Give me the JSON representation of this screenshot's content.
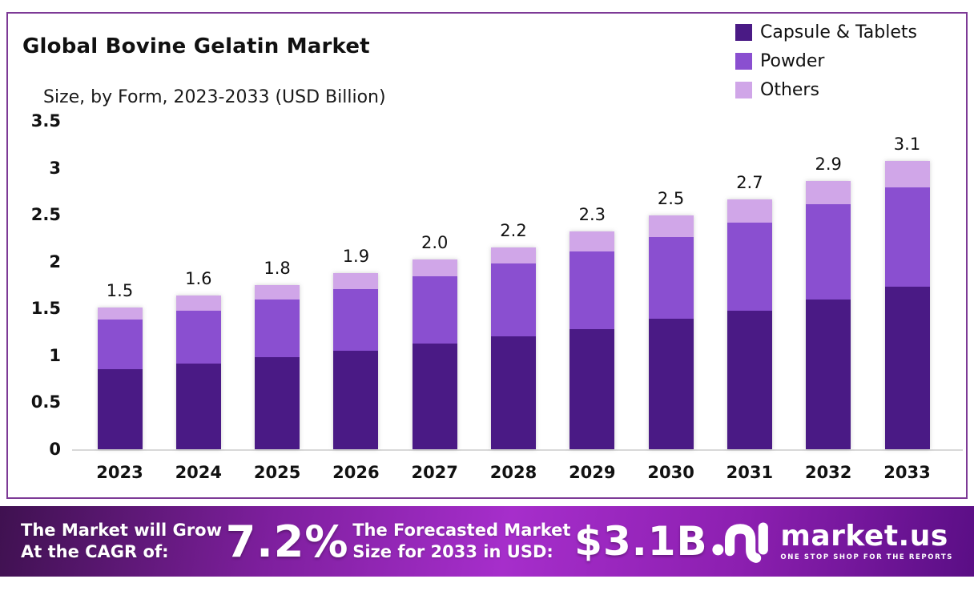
{
  "title": "Global Bovine Gelatin Market",
  "subtitle": "Size, by Form, 2023-2033 (USD Billion)",
  "colors": {
    "capsule": "#4a1a85",
    "powder": "#8a4fd0",
    "others": "#d0a6e8",
    "card_border": "#7d3a96",
    "axis_line": "#d8d8d8"
  },
  "legend": [
    {
      "label": "Capsule & Tablets",
      "color": "#4a1a85"
    },
    {
      "label": "Powder",
      "color": "#8a4fd0"
    },
    {
      "label": "Others",
      "color": "#d0a6e8"
    }
  ],
  "chart_data": {
    "type": "bar",
    "stacked": true,
    "title": "Global Bovine Gelatin Market Size, by Form, 2023-2033 (USD Billion)",
    "categories": [
      "2023",
      "2024",
      "2025",
      "2026",
      "2027",
      "2028",
      "2029",
      "2030",
      "2031",
      "2032",
      "2033"
    ],
    "series": [
      {
        "name": "Capsule & Tablets",
        "color_key": "capsule",
        "values": [
          0.85,
          0.91,
          0.98,
          1.05,
          1.13,
          1.2,
          1.28,
          1.39,
          1.48,
          1.6,
          1.73
        ]
      },
      {
        "name": "Powder",
        "color_key": "powder",
        "values": [
          0.53,
          0.57,
          0.62,
          0.66,
          0.71,
          0.78,
          0.83,
          0.87,
          0.94,
          1.01,
          1.06
        ]
      },
      {
        "name": "Others",
        "color_key": "others",
        "values": [
          0.13,
          0.16,
          0.15,
          0.17,
          0.18,
          0.17,
          0.21,
          0.23,
          0.24,
          0.25,
          0.28
        ]
      }
    ],
    "total_labels": [
      "1.5",
      "1.6",
      "1.8",
      "1.9",
      "2.0",
      "2.2",
      "2.3",
      "2.5",
      "2.7",
      "2.9",
      "3.1"
    ],
    "yticks": [
      "3.5",
      "3",
      "2.5",
      "2",
      "1.5",
      "1",
      "0.5",
      "0"
    ],
    "ylim": [
      0,
      3.5
    ],
    "grid": false,
    "legend_position": "top-right",
    "xlabel": "",
    "ylabel": ""
  },
  "banner": {
    "cagr_line1": "The Market will Grow",
    "cagr_line2": "At the CAGR of:",
    "cagr_value": "7.2%",
    "forecast_line1": "The Forecasted Market",
    "forecast_line2": "Size for 2033 in USD:",
    "forecast_value": "$3.1B"
  },
  "logo": {
    "name": "market.us",
    "tagline": "ONE STOP SHOP FOR THE REPORTS"
  }
}
